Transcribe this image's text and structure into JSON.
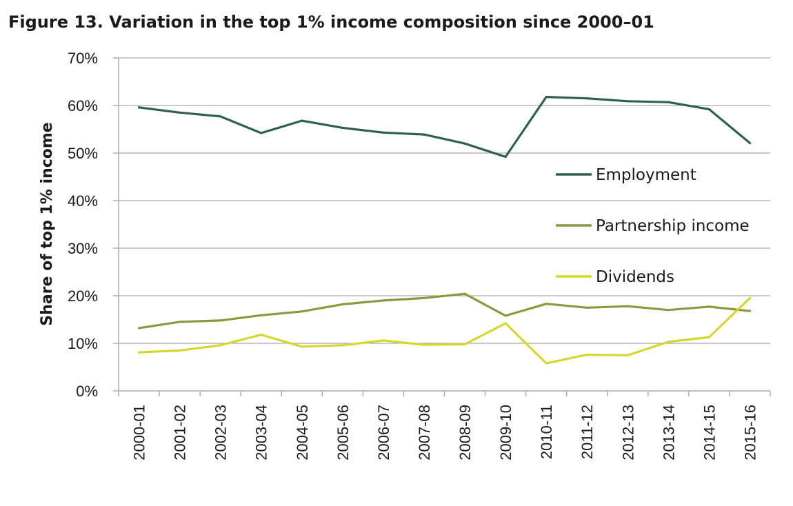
{
  "title": "Figure 13. Variation in the top 1% income composition since 2000–01",
  "chart_data": {
    "type": "line",
    "title": "Figure 13. Variation in the top 1% income composition since 2000–01",
    "xlabel": "",
    "ylabel": "Share of top 1% income",
    "ylim": [
      0,
      70
    ],
    "yticks": [
      "0%",
      "10%",
      "20%",
      "30%",
      "40%",
      "50%",
      "60%",
      "70%"
    ],
    "grid": "horizontal",
    "legend_position": "right",
    "categories": [
      "2000-01",
      "2001-02",
      "2002-03",
      "2003-04",
      "2004-05",
      "2005-06",
      "2006-07",
      "2007-08",
      "2008-09",
      "2009-10",
      "2010-11",
      "2011-12",
      "2012-13",
      "2013-14",
      "2014-15",
      "2015-16"
    ],
    "series": [
      {
        "name": "Employment",
        "color": "#2f5f4f",
        "values": [
          59.6,
          58.5,
          57.7,
          54.2,
          56.8,
          55.3,
          54.3,
          53.9,
          52.0,
          49.2,
          61.8,
          61.5,
          60.9,
          60.7,
          59.2,
          52.1
        ]
      },
      {
        "name": "Partnership income",
        "color": "#8a9a3c",
        "values": [
          13.2,
          14.5,
          14.8,
          15.9,
          16.7,
          18.2,
          19.0,
          19.5,
          20.4,
          15.8,
          18.3,
          17.5,
          17.8,
          17.0,
          17.7,
          16.8
        ]
      },
      {
        "name": "Dividends",
        "color": "#d4d82e",
        "values": [
          8.1,
          8.5,
          9.6,
          11.8,
          9.3,
          9.6,
          10.6,
          9.7,
          9.8,
          14.2,
          5.8,
          7.6,
          7.5,
          10.3,
          11.3,
          19.5
        ]
      }
    ]
  }
}
